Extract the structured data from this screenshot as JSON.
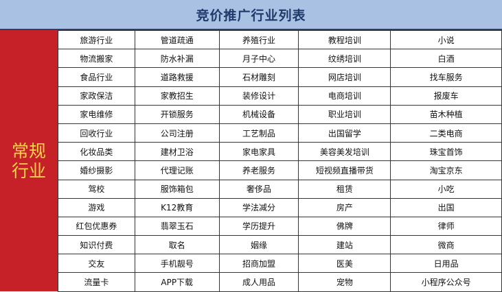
{
  "title": "竞价推广行业列表",
  "category": "常规行业",
  "colors": {
    "header_bg": "#a9c1e2",
    "title": "#1f3a6b",
    "side_bg": "#c62028",
    "side_text": "#f8d64a"
  },
  "rows": [
    [
      "旅游行业",
      "管道疏通",
      "养殖行业",
      "教程培训",
      "小说"
    ],
    [
      "物流搬家",
      "防水补漏",
      "月子中心",
      "纹绣培训",
      "白酒"
    ],
    [
      "食品行业",
      "道路救援",
      "石材雕刻",
      "网店培训",
      "找车服务"
    ],
    [
      "家政保洁",
      "家教招生",
      "装修设计",
      "电商培训",
      "报废车"
    ],
    [
      "家电维修",
      "开锁服务",
      "机械设备",
      "职业培训",
      "苗木种植"
    ],
    [
      "回收行业",
      "公司注册",
      "工艺制品",
      "出国留学",
      "二类电商"
    ],
    [
      "化妆品类",
      "建材卫浴",
      "家电家具",
      "美容美发培训",
      "珠宝首饰"
    ],
    [
      "婚纱摄影",
      "代理记账",
      "养老服务",
      "短视频直播带货",
      "淘宝京东"
    ],
    [
      "驾校",
      "服饰箱包",
      "奢侈品",
      "租赁",
      "小吃"
    ],
    [
      "游戏",
      "K12教育",
      "学法减分",
      "房产",
      "出国"
    ],
    [
      "红包优惠券",
      "翡翠玉石",
      "学历提升",
      "佛牌",
      "律师"
    ],
    [
      "知识付费",
      "取名",
      "姻缘",
      "建站",
      "微商"
    ],
    [
      "交友",
      "手机靓号",
      "招商加盟",
      "医美",
      "日用品"
    ],
    [
      "流量卡",
      "APP下载",
      "成人用品",
      "宠物",
      "小程序公众号"
    ]
  ]
}
